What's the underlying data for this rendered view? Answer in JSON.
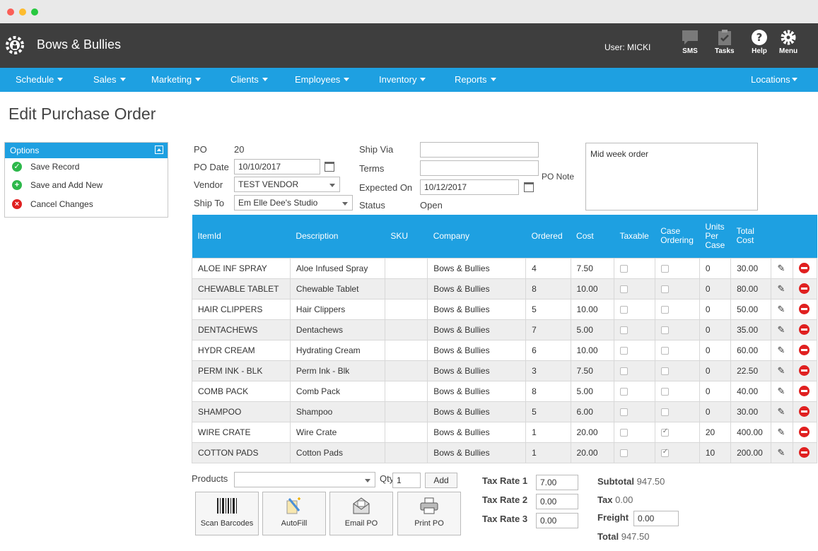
{
  "app": {
    "brand": "Bows & Bullies",
    "user": "User: MICKI"
  },
  "toolbar": [
    {
      "label": "SMS",
      "icon": "chat-bubble-icon"
    },
    {
      "label": "Tasks",
      "icon": "clipboard-check-icon"
    },
    {
      "label": "Help",
      "icon": "question-circle-icon"
    },
    {
      "label": "Menu",
      "icon": "gear-icon"
    }
  ],
  "nav": [
    "Schedule",
    "Sales",
    "Marketing",
    "Clients",
    "Employees",
    "Inventory",
    "Reports"
  ],
  "nav_right": "Locations",
  "page_title": "Edit Purchase Order",
  "options": {
    "title": "Options",
    "items": [
      "Save Record",
      "Save and Add New",
      "Cancel Changes"
    ]
  },
  "form": {
    "po_label": "PO",
    "po_value": "20",
    "po_date_label": "PO Date",
    "po_date_value": "10/10/2017",
    "vendor_label": "Vendor",
    "vendor_value": "TEST VENDOR",
    "ship_to_label": "Ship To",
    "ship_to_value": "Em Elle Dee's Studio",
    "ship_via_label": "Ship Via",
    "ship_via_value": "",
    "terms_label": "Terms",
    "terms_value": "",
    "expected_label": "Expected On",
    "expected_value": "10/12/2017",
    "status_label": "Status",
    "status_value": "Open",
    "po_note_label": "PO Note",
    "po_note_value": "Mid week order"
  },
  "table": {
    "headers": [
      "ItemId",
      "Description",
      "SKU",
      "Company",
      "Ordered",
      "Cost",
      "Taxable",
      "Case Ordering",
      "Units Per Case",
      "Total Cost"
    ],
    "rows": [
      {
        "item": "ALOE INF SPRAY",
        "desc": "Aloe Infused Spray",
        "sku": "",
        "company": "Bows & Bullies",
        "ordered": "4",
        "cost": "7.50",
        "taxable": false,
        "case": false,
        "units": "0",
        "total": "30.00"
      },
      {
        "item": "CHEWABLE TABLET",
        "desc": "Chewable Tablet",
        "sku": "",
        "company": "Bows & Bullies",
        "ordered": "8",
        "cost": "10.00",
        "taxable": false,
        "case": false,
        "units": "0",
        "total": "80.00"
      },
      {
        "item": "HAIR CLIPPERS",
        "desc": "Hair Clippers",
        "sku": "",
        "company": "Bows & Bullies",
        "ordered": "5",
        "cost": "10.00",
        "taxable": false,
        "case": false,
        "units": "0",
        "total": "50.00"
      },
      {
        "item": "DENTACHEWS",
        "desc": "Dentachews",
        "sku": "",
        "company": "Bows & Bullies",
        "ordered": "7",
        "cost": "5.00",
        "taxable": false,
        "case": false,
        "units": "0",
        "total": "35.00"
      },
      {
        "item": "HYDR CREAM",
        "desc": "Hydrating Cream",
        "sku": "",
        "company": "Bows & Bullies",
        "ordered": "6",
        "cost": "10.00",
        "taxable": false,
        "case": false,
        "units": "0",
        "total": "60.00"
      },
      {
        "item": "PERM INK - BLK",
        "desc": "Perm Ink - Blk",
        "sku": "",
        "company": "Bows & Bullies",
        "ordered": "3",
        "cost": "7.50",
        "taxable": false,
        "case": false,
        "units": "0",
        "total": "22.50"
      },
      {
        "item": "COMB PACK",
        "desc": "Comb Pack",
        "sku": "",
        "company": "Bows & Bullies",
        "ordered": "8",
        "cost": "5.00",
        "taxable": false,
        "case": false,
        "units": "0",
        "total": "40.00"
      },
      {
        "item": "SHAMPOO",
        "desc": "Shampoo",
        "sku": "",
        "company": "Bows & Bullies",
        "ordered": "5",
        "cost": "6.00",
        "taxable": false,
        "case": false,
        "units": "0",
        "total": "30.00"
      },
      {
        "item": "WIRE CRATE",
        "desc": "Wire Crate",
        "sku": "",
        "company": "Bows & Bullies",
        "ordered": "1",
        "cost": "20.00",
        "taxable": false,
        "case": true,
        "units": "20",
        "total": "400.00"
      },
      {
        "item": "COTTON PADS",
        "desc": "Cotton Pads",
        "sku": "",
        "company": "Bows & Bullies",
        "ordered": "1",
        "cost": "20.00",
        "taxable": false,
        "case": true,
        "units": "10",
        "total": "200.00"
      }
    ]
  },
  "footer": {
    "products_label": "Products",
    "products_value": "",
    "qty_label": "Qty",
    "qty_value": "1",
    "add_label": "Add",
    "buttons": [
      "Scan Barcodes",
      "AutoFill",
      "Email PO",
      "Print PO"
    ],
    "tax_rate_1_label": "Tax Rate 1",
    "tax_rate_1_value": "7.00",
    "tax_rate_2_label": "Tax Rate 2",
    "tax_rate_2_value": "0.00",
    "tax_rate_3_label": "Tax Rate 3",
    "tax_rate_3_value": "0.00",
    "subtotal_label": "Subtotal",
    "subtotal_value": "947.50",
    "tax_label": "Tax",
    "tax_value": "0.00",
    "freight_label": "Freight",
    "freight_value": "0.00",
    "total_label": "Total",
    "total_value": "947.50"
  },
  "colors": {
    "accent": "#1ea0e1",
    "appbar": "#3e3e3e",
    "delete": "#e02020",
    "success": "#2db84b"
  }
}
